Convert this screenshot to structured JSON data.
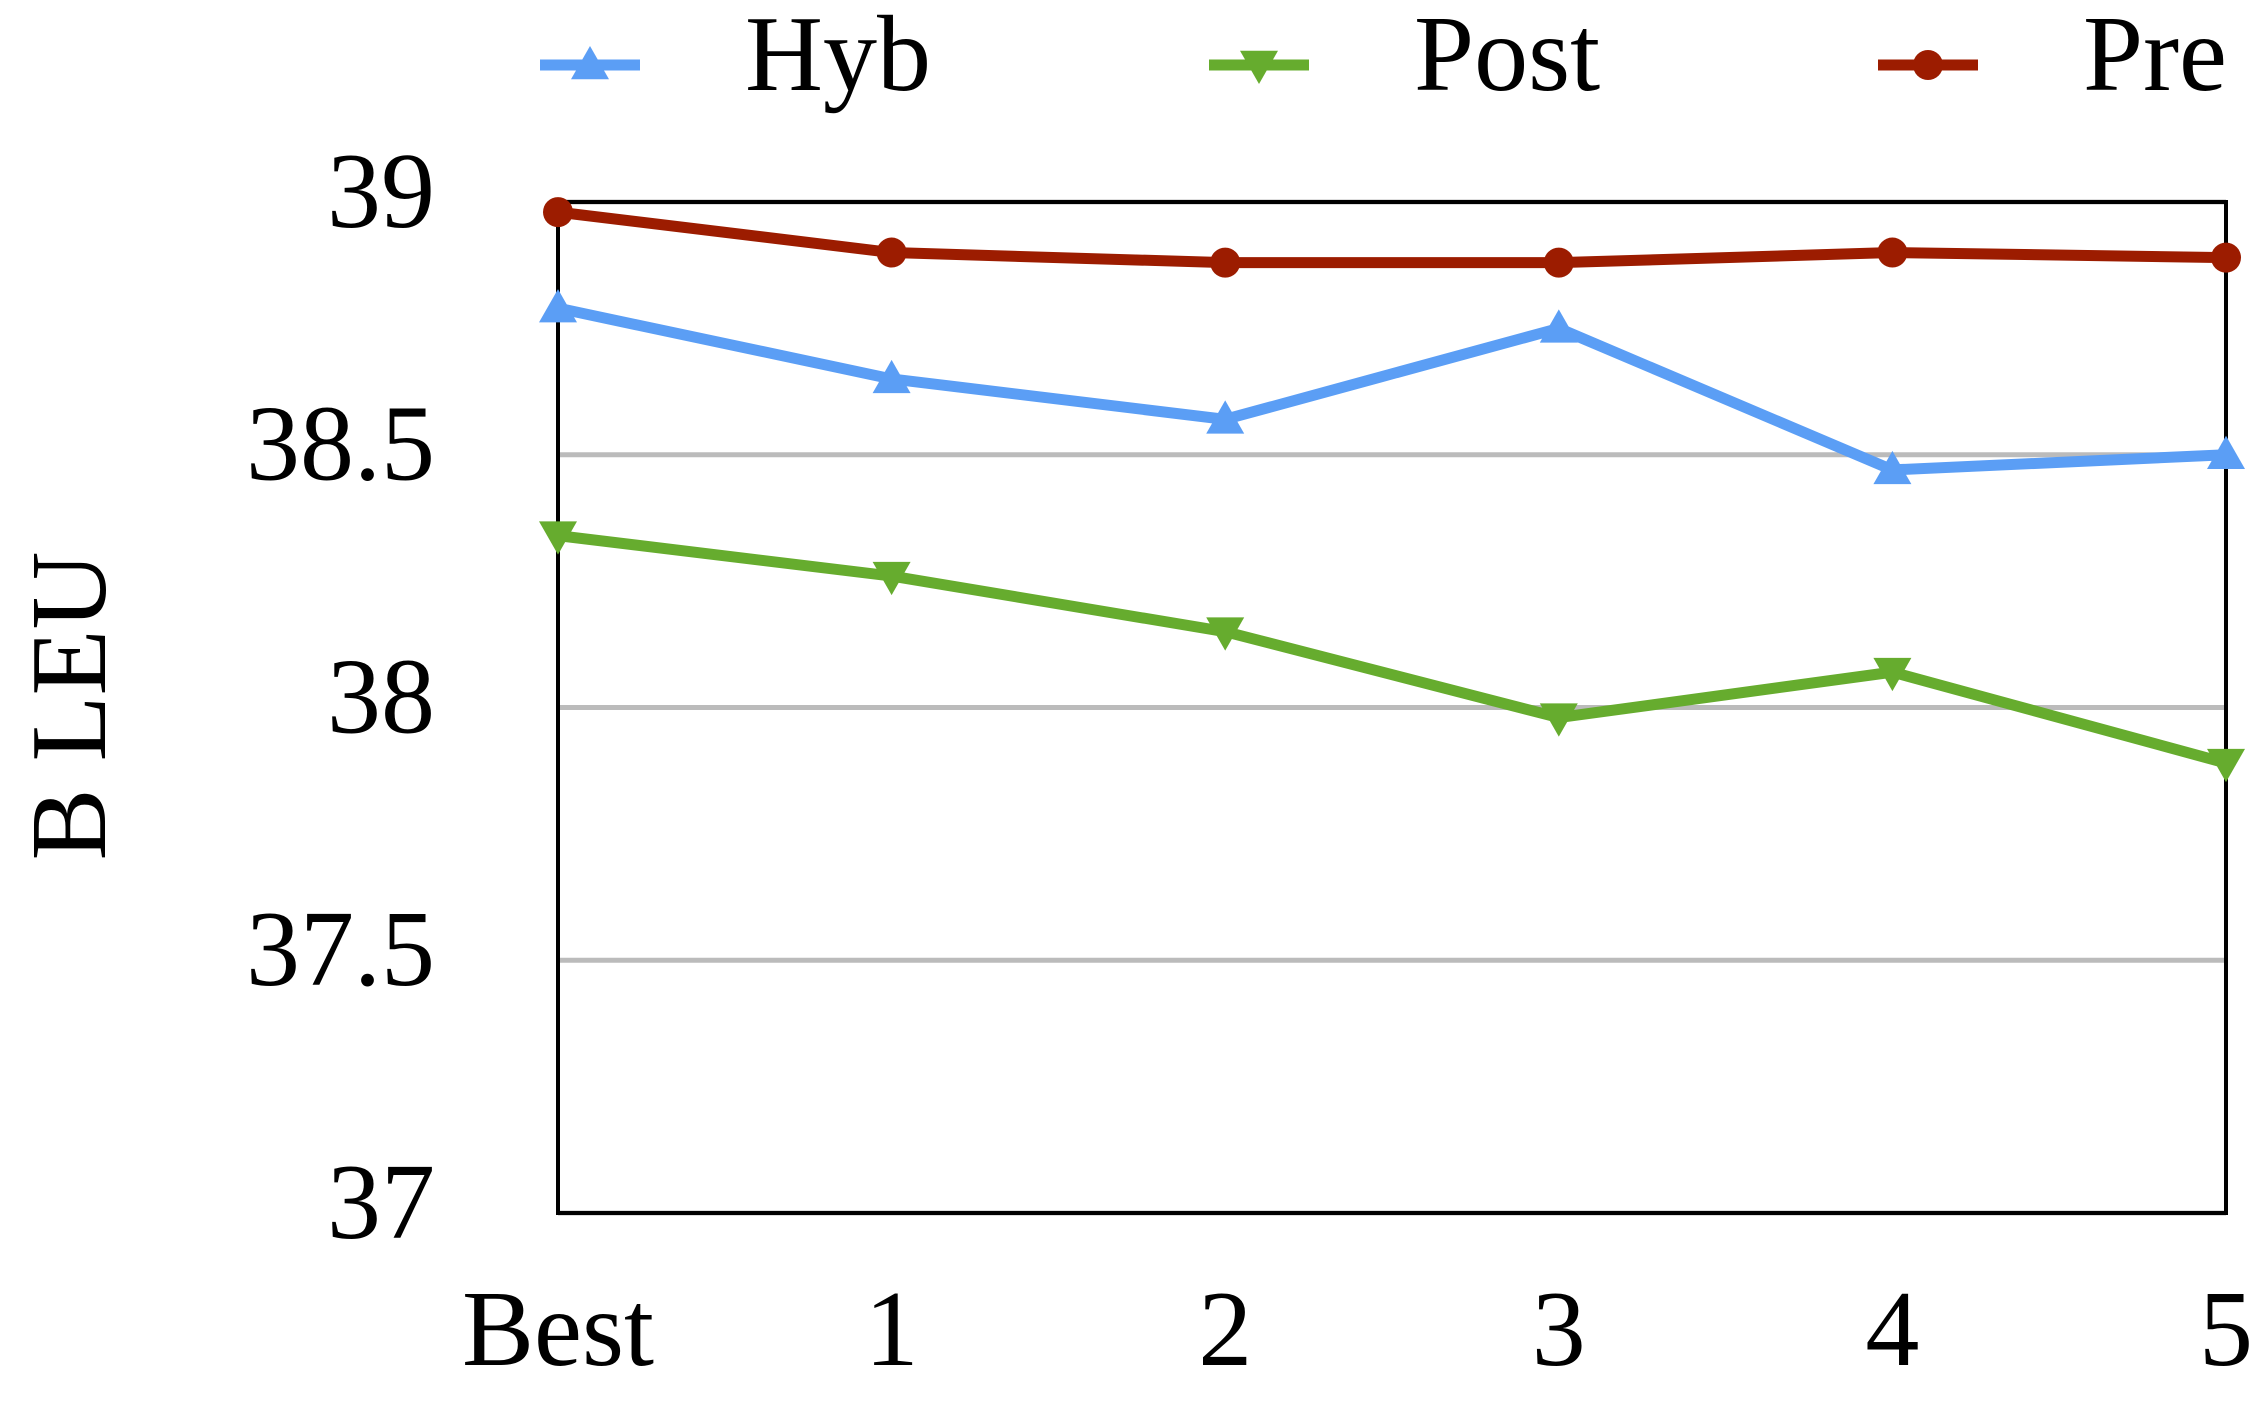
{
  "chart_data": {
    "type": "line",
    "y_label": "B LEU",
    "categories": [
      "Best",
      "1",
      "2",
      "3",
      "4",
      "5"
    ],
    "series": [
      {
        "name": "Hyb",
        "color": "#5b9ef5",
        "marker": "triangle-up",
        "values": [
          38.79,
          38.65,
          38.57,
          38.75,
          38.47,
          38.5
        ]
      },
      {
        "name": "Post",
        "color": "#66ac2e",
        "marker": "triangle-down",
        "values": [
          38.34,
          38.26,
          38.15,
          37.98,
          38.07,
          37.89
        ]
      },
      {
        "name": "Pre",
        "color": "#9c1c00",
        "marker": "circle",
        "values": [
          38.98,
          38.9,
          38.88,
          38.88,
          38.9,
          38.89
        ]
      }
    ],
    "ylim": [
      37,
      39
    ],
    "yticks": [
      37,
      37.5,
      38,
      38.5,
      39
    ],
    "grid": true,
    "legend": "top"
  }
}
